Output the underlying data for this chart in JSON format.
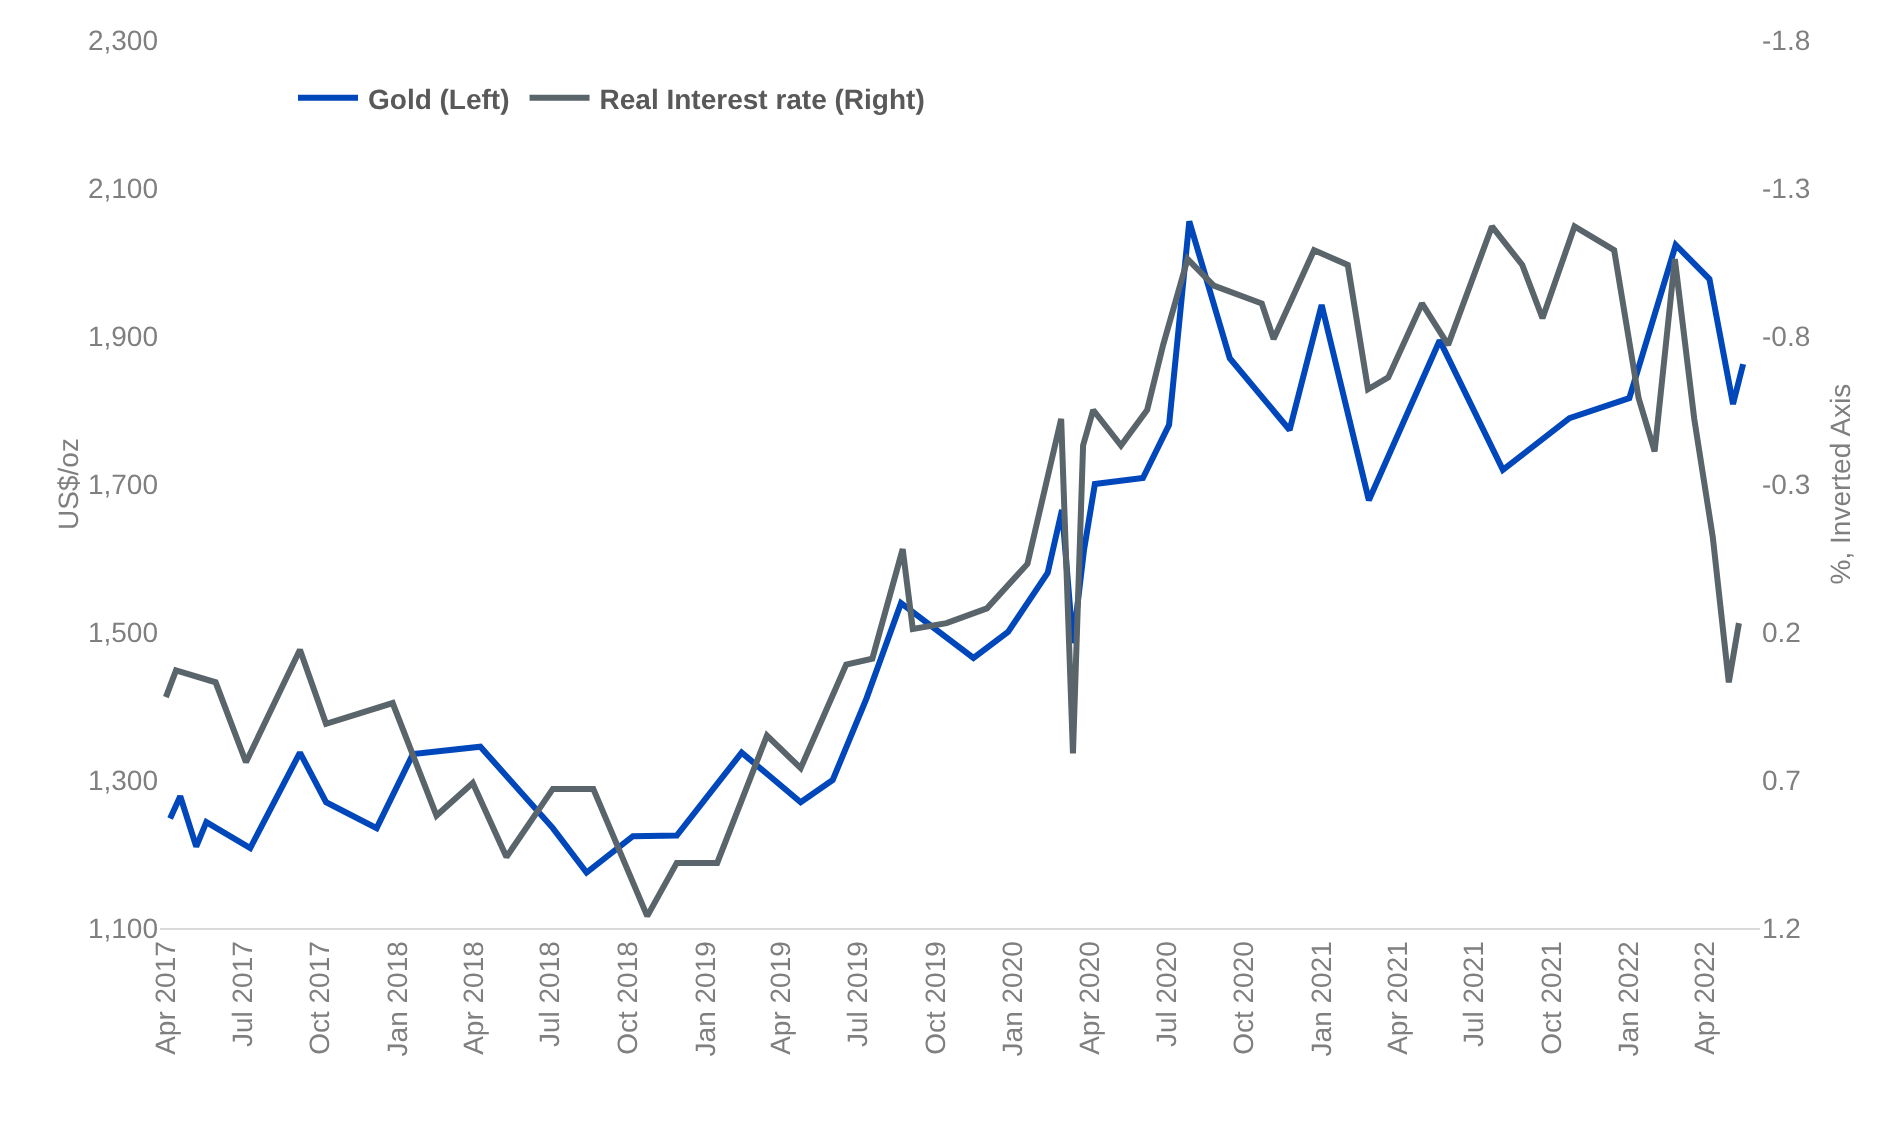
{
  "chart_data": {
    "type": "line",
    "ylabel": "US$/oz",
    "y2label": "%, Inverted Axis",
    "xlim": [
      "2017-03-25",
      "2022-06-05"
    ],
    "xticks": [
      {
        "value": "2017-04-01",
        "label": "Apr 2017"
      },
      {
        "value": "2017-07-01",
        "label": "Jul 2017"
      },
      {
        "value": "2017-10-01",
        "label": "Oct 2017"
      },
      {
        "value": "2018-01-01",
        "label": "Jan 2018"
      },
      {
        "value": "2018-04-01",
        "label": "Apr 2018"
      },
      {
        "value": "2018-07-01",
        "label": "Jul 2018"
      },
      {
        "value": "2018-10-01",
        "label": "Oct 2018"
      },
      {
        "value": "2019-01-01",
        "label": "Jan 2019"
      },
      {
        "value": "2019-04-01",
        "label": "Apr 2019"
      },
      {
        "value": "2019-07-01",
        "label": "Jul 2019"
      },
      {
        "value": "2019-10-01",
        "label": "Oct 2019"
      },
      {
        "value": "2020-01-01",
        "label": "Jan 2020"
      },
      {
        "value": "2020-04-01",
        "label": "Apr 2020"
      },
      {
        "value": "2020-07-01",
        "label": "Jul 2020"
      },
      {
        "value": "2020-10-01",
        "label": "Oct 2020"
      },
      {
        "value": "2021-01-01",
        "label": "Jan 2021"
      },
      {
        "value": "2021-04-01",
        "label": "Apr 2021"
      },
      {
        "value": "2021-07-01",
        "label": "Jul 2021"
      },
      {
        "value": "2021-10-01",
        "label": "Oct 2021"
      },
      {
        "value": "2022-01-01",
        "label": "Jan 2022"
      },
      {
        "value": "2022-04-01",
        "label": "Apr 2022"
      }
    ],
    "ylim": [
      1100,
      2300
    ],
    "yticks": [
      {
        "value": 1100,
        "label": "1,100"
      },
      {
        "value": 1300,
        "label": "1,300"
      },
      {
        "value": 1500,
        "label": "1,500"
      },
      {
        "value": 1700,
        "label": "1,700"
      },
      {
        "value": 1900,
        "label": "1,900"
      },
      {
        "value": 2100,
        "label": "2,100"
      },
      {
        "value": 2300,
        "label": "2,300"
      }
    ],
    "y2lim": [
      1.2,
      -1.8
    ],
    "y2ticks": [
      -1.8,
      -1.3,
      -0.8,
      -0.3,
      0.2,
      0.7,
      1.2
    ],
    "grid": false,
    "legend": "top",
    "marker": "none",
    "line_style": "solid",
    "series": [
      {
        "name": "Gold (Left)",
        "color": "#0047bb",
        "axis": "y",
        "x": [
          "2017-04-06",
          "2017-04-18",
          "2017-05-07",
          "2017-05-19",
          "2017-07-10",
          "2017-09-07",
          "2017-10-08",
          "2017-12-07",
          "2018-01-19",
          "2018-04-09",
          "2018-07-04",
          "2018-08-13",
          "2018-10-07",
          "2018-11-28",
          "2019-02-13",
          "2019-04-24",
          "2019-06-01",
          "2019-07-11",
          "2019-08-21",
          "2019-11-15",
          "2019-12-26",
          "2020-02-11",
          "2020-02-28",
          "2020-03-12",
          "2020-03-25",
          "2020-04-07",
          "2020-06-03",
          "2020-07-04",
          "2020-07-28",
          "2020-09-14",
          "2020-11-24",
          "2021-01-01",
          "2021-02-26",
          "2021-05-21",
          "2021-08-04",
          "2021-10-22",
          "2022-01-01",
          "2022-02-25",
          "2022-04-06",
          "2022-05-04",
          "2022-05-16"
        ],
        "values": [
          1248,
          1278,
          1210,
          1243,
          1208,
          1337,
          1270,
          1235,
          1335,
          1345,
          1235,
          1175,
          1224,
          1225,
          1337,
          1270,
          1300,
          1410,
          1539,
          1465,
          1500,
          1580,
          1665,
          1485,
          1610,
          1700,
          1708,
          1780,
          2055,
          1870,
          1773,
          1942,
          1678,
          1894,
          1719,
          1789,
          1816,
          2023,
          1977,
          1808,
          1862
        ]
      },
      {
        "name": "Real Interest rate (Right)",
        "color": "#5a646b",
        "axis": "y2",
        "x": [
          "2017-04-01",
          "2017-04-13",
          "2017-05-30",
          "2017-07-05",
          "2017-09-07",
          "2017-10-08",
          "2017-12-26",
          "2018-02-16",
          "2018-03-31",
          "2018-05-10",
          "2018-07-04",
          "2018-08-21",
          "2018-10-24",
          "2018-11-28",
          "2019-01-15",
          "2019-03-15",
          "2019-04-24",
          "2019-06-17",
          "2019-07-18",
          "2019-08-23",
          "2019-09-04",
          "2019-10-14",
          "2019-12-01",
          "2020-01-18",
          "2020-02-27",
          "2020-03-12",
          "2020-03-24",
          "2020-04-05",
          "2020-05-08",
          "2020-06-08",
          "2020-06-27",
          "2020-07-26",
          "2020-08-26",
          "2020-10-22",
          "2020-11-05",
          "2020-12-23",
          "2021-02-01",
          "2021-02-25",
          "2021-03-21",
          "2021-04-30",
          "2021-05-31",
          "2021-07-22",
          "2021-08-27",
          "2021-09-20",
          "2021-10-28",
          "2021-12-14",
          "2022-01-12",
          "2022-01-31",
          "2022-02-24",
          "2022-03-19",
          "2022-04-10",
          "2022-04-29",
          "2022-05-11"
        ],
        "values": [
          0.42,
          0.33,
          0.37,
          0.64,
          0.26,
          0.51,
          0.44,
          0.82,
          0.71,
          0.96,
          0.73,
          0.73,
          1.16,
          0.98,
          0.98,
          0.55,
          0.66,
          0.31,
          0.29,
          -0.08,
          0.19,
          0.17,
          0.12,
          -0.03,
          -0.52,
          0.61,
          -0.43,
          -0.55,
          -0.43,
          -0.55,
          -0.77,
          -1.06,
          -0.97,
          -0.91,
          -0.79,
          -1.09,
          -1.04,
          -0.62,
          -0.66,
          -0.91,
          -0.77,
          -1.17,
          -1.04,
          -0.86,
          -1.17,
          -1.09,
          -0.59,
          -0.41,
          -1.06,
          -0.52,
          -0.12,
          0.37,
          0.17
        ]
      }
    ]
  }
}
